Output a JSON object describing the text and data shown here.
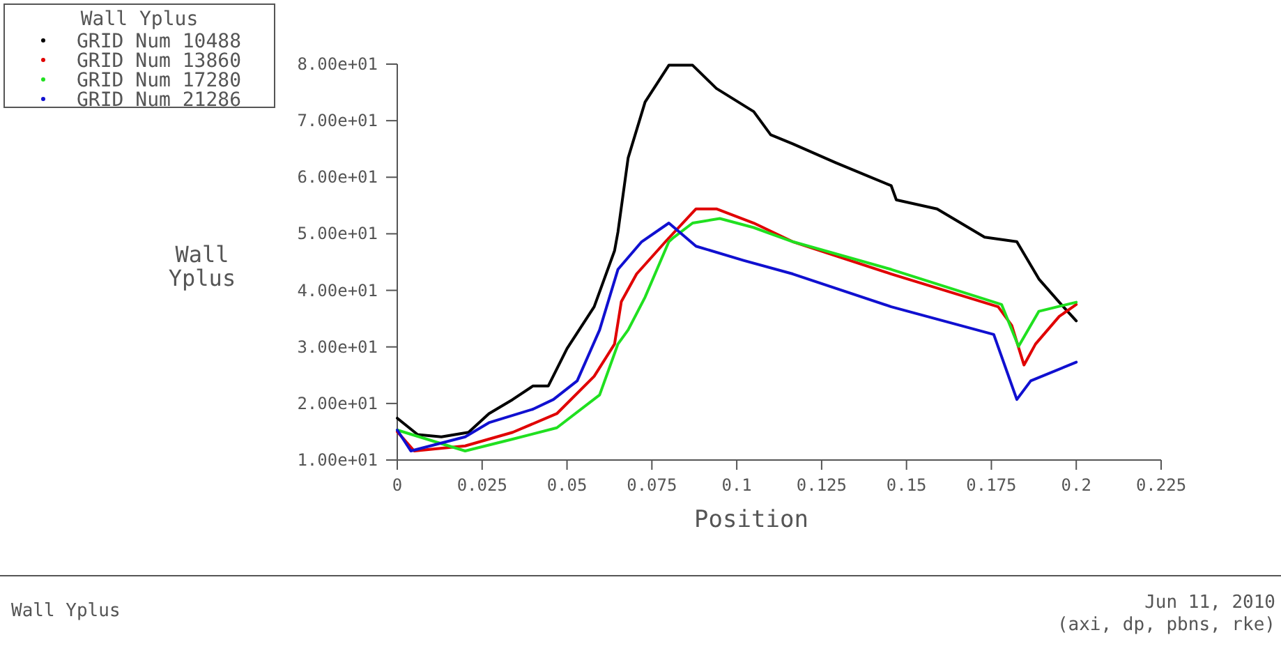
{
  "chart_data": {
    "type": "line",
    "xlabel": "Position",
    "ylabel": "Wall\nYplus",
    "legend_title": "Wall Yplus",
    "legend": "top left",
    "marker": "none",
    "grid": false,
    "xlim": [
      0,
      0.225
    ],
    "xticks": [
      0,
      0.025,
      0.05,
      0.075,
      0.1,
      0.125,
      0.15,
      0.175,
      0.2,
      0.225
    ],
    "ylim": [
      10,
      80
    ],
    "yticks": [
      {
        "value": 10,
        "label": "1.00e+01"
      },
      {
        "value": 20,
        "label": "2.00e+01"
      },
      {
        "value": 30,
        "label": "3.00e+01"
      },
      {
        "value": 40,
        "label": "4.00e+01"
      },
      {
        "value": 50,
        "label": "5.00e+01"
      },
      {
        "value": 60,
        "label": "6.00e+01"
      },
      {
        "value": 70,
        "label": "7.00e+01"
      },
      {
        "value": 80,
        "label": "8.00e+01"
      }
    ],
    "annotations": [
      "Wall Yplus",
      "Jun 11, 2010",
      "(axi, dp, pbns, rke)"
    ],
    "series": [
      {
        "name": "GRID Num 10488",
        "color": "#000000",
        "x": [
          0,
          0.006,
          0.013,
          0.021,
          0.027,
          0.034,
          0.04,
          0.0445,
          0.05,
          0.058,
          0.064,
          0.065,
          0.068,
          0.073,
          0.08,
          0.087,
          0.094,
          0.105,
          0.11,
          0.1165,
          0.129,
          0.1455,
          0.147,
          0.159,
          0.173,
          0.1825,
          0.189,
          0.195,
          0.2
        ],
        "values": [
          17.4,
          14.5,
          14.1,
          14.9,
          18.2,
          20.7,
          23.1,
          23.1,
          29.7,
          37.1,
          47,
          50.3,
          63.4,
          73.3,
          79.8,
          79.8,
          75.7,
          71.6,
          67.5,
          65.9,
          62.6,
          58.5,
          56,
          54.4,
          49.4,
          48.6,
          42,
          37.9,
          34.6
        ]
      },
      {
        "name": "GRID Num 13860",
        "color": "#e00000",
        "x": [
          0,
          0.005,
          0.02,
          0.034,
          0.047,
          0.058,
          0.064,
          0.066,
          0.0705,
          0.079,
          0.088,
          0.094,
          0.105,
          0.1165,
          0.1455,
          0.177,
          0.181,
          0.1846,
          0.188,
          0.195,
          0.2
        ],
        "values": [
          15,
          11.6,
          12.5,
          14.9,
          18.2,
          24.8,
          30.5,
          38,
          42.9,
          48.6,
          54.4,
          54.4,
          51.9,
          48.6,
          42.9,
          37.1,
          33.8,
          26.8,
          30.5,
          35.4,
          37.5
        ]
      },
      {
        "name": "GRID Num 17280",
        "color": "#20e020",
        "x": [
          0,
          0.02,
          0.034,
          0.047,
          0.0596,
          0.065,
          0.068,
          0.073,
          0.08,
          0.0815,
          0.087,
          0.095,
          0.105,
          0.1165,
          0.1455,
          0.178,
          0.183,
          0.189,
          0.2
        ],
        "values": [
          15.3,
          11.6,
          13.7,
          15.7,
          21.5,
          30.5,
          33,
          38.8,
          48.6,
          49.4,
          51.9,
          52.7,
          51.1,
          48.6,
          43.7,
          37.5,
          30.1,
          36.3,
          37.9
        ]
      },
      {
        "name": "GRID Num 21286",
        "color": "#1010d0",
        "x": [
          0,
          0.004,
          0.02,
          0.027,
          0.04,
          0.046,
          0.053,
          0.0596,
          0.065,
          0.072,
          0.08,
          0.088,
          0.102,
          0.1165,
          0.1455,
          0.1757,
          0.1825,
          0.1866,
          0.2
        ],
        "values": [
          15.3,
          11.6,
          14.1,
          16.6,
          19,
          20.7,
          24,
          33,
          43.7,
          48.6,
          51.9,
          47.8,
          45.3,
          42.9,
          37.1,
          32.2,
          20.7,
          24,
          27.3
        ]
      }
    ]
  }
}
